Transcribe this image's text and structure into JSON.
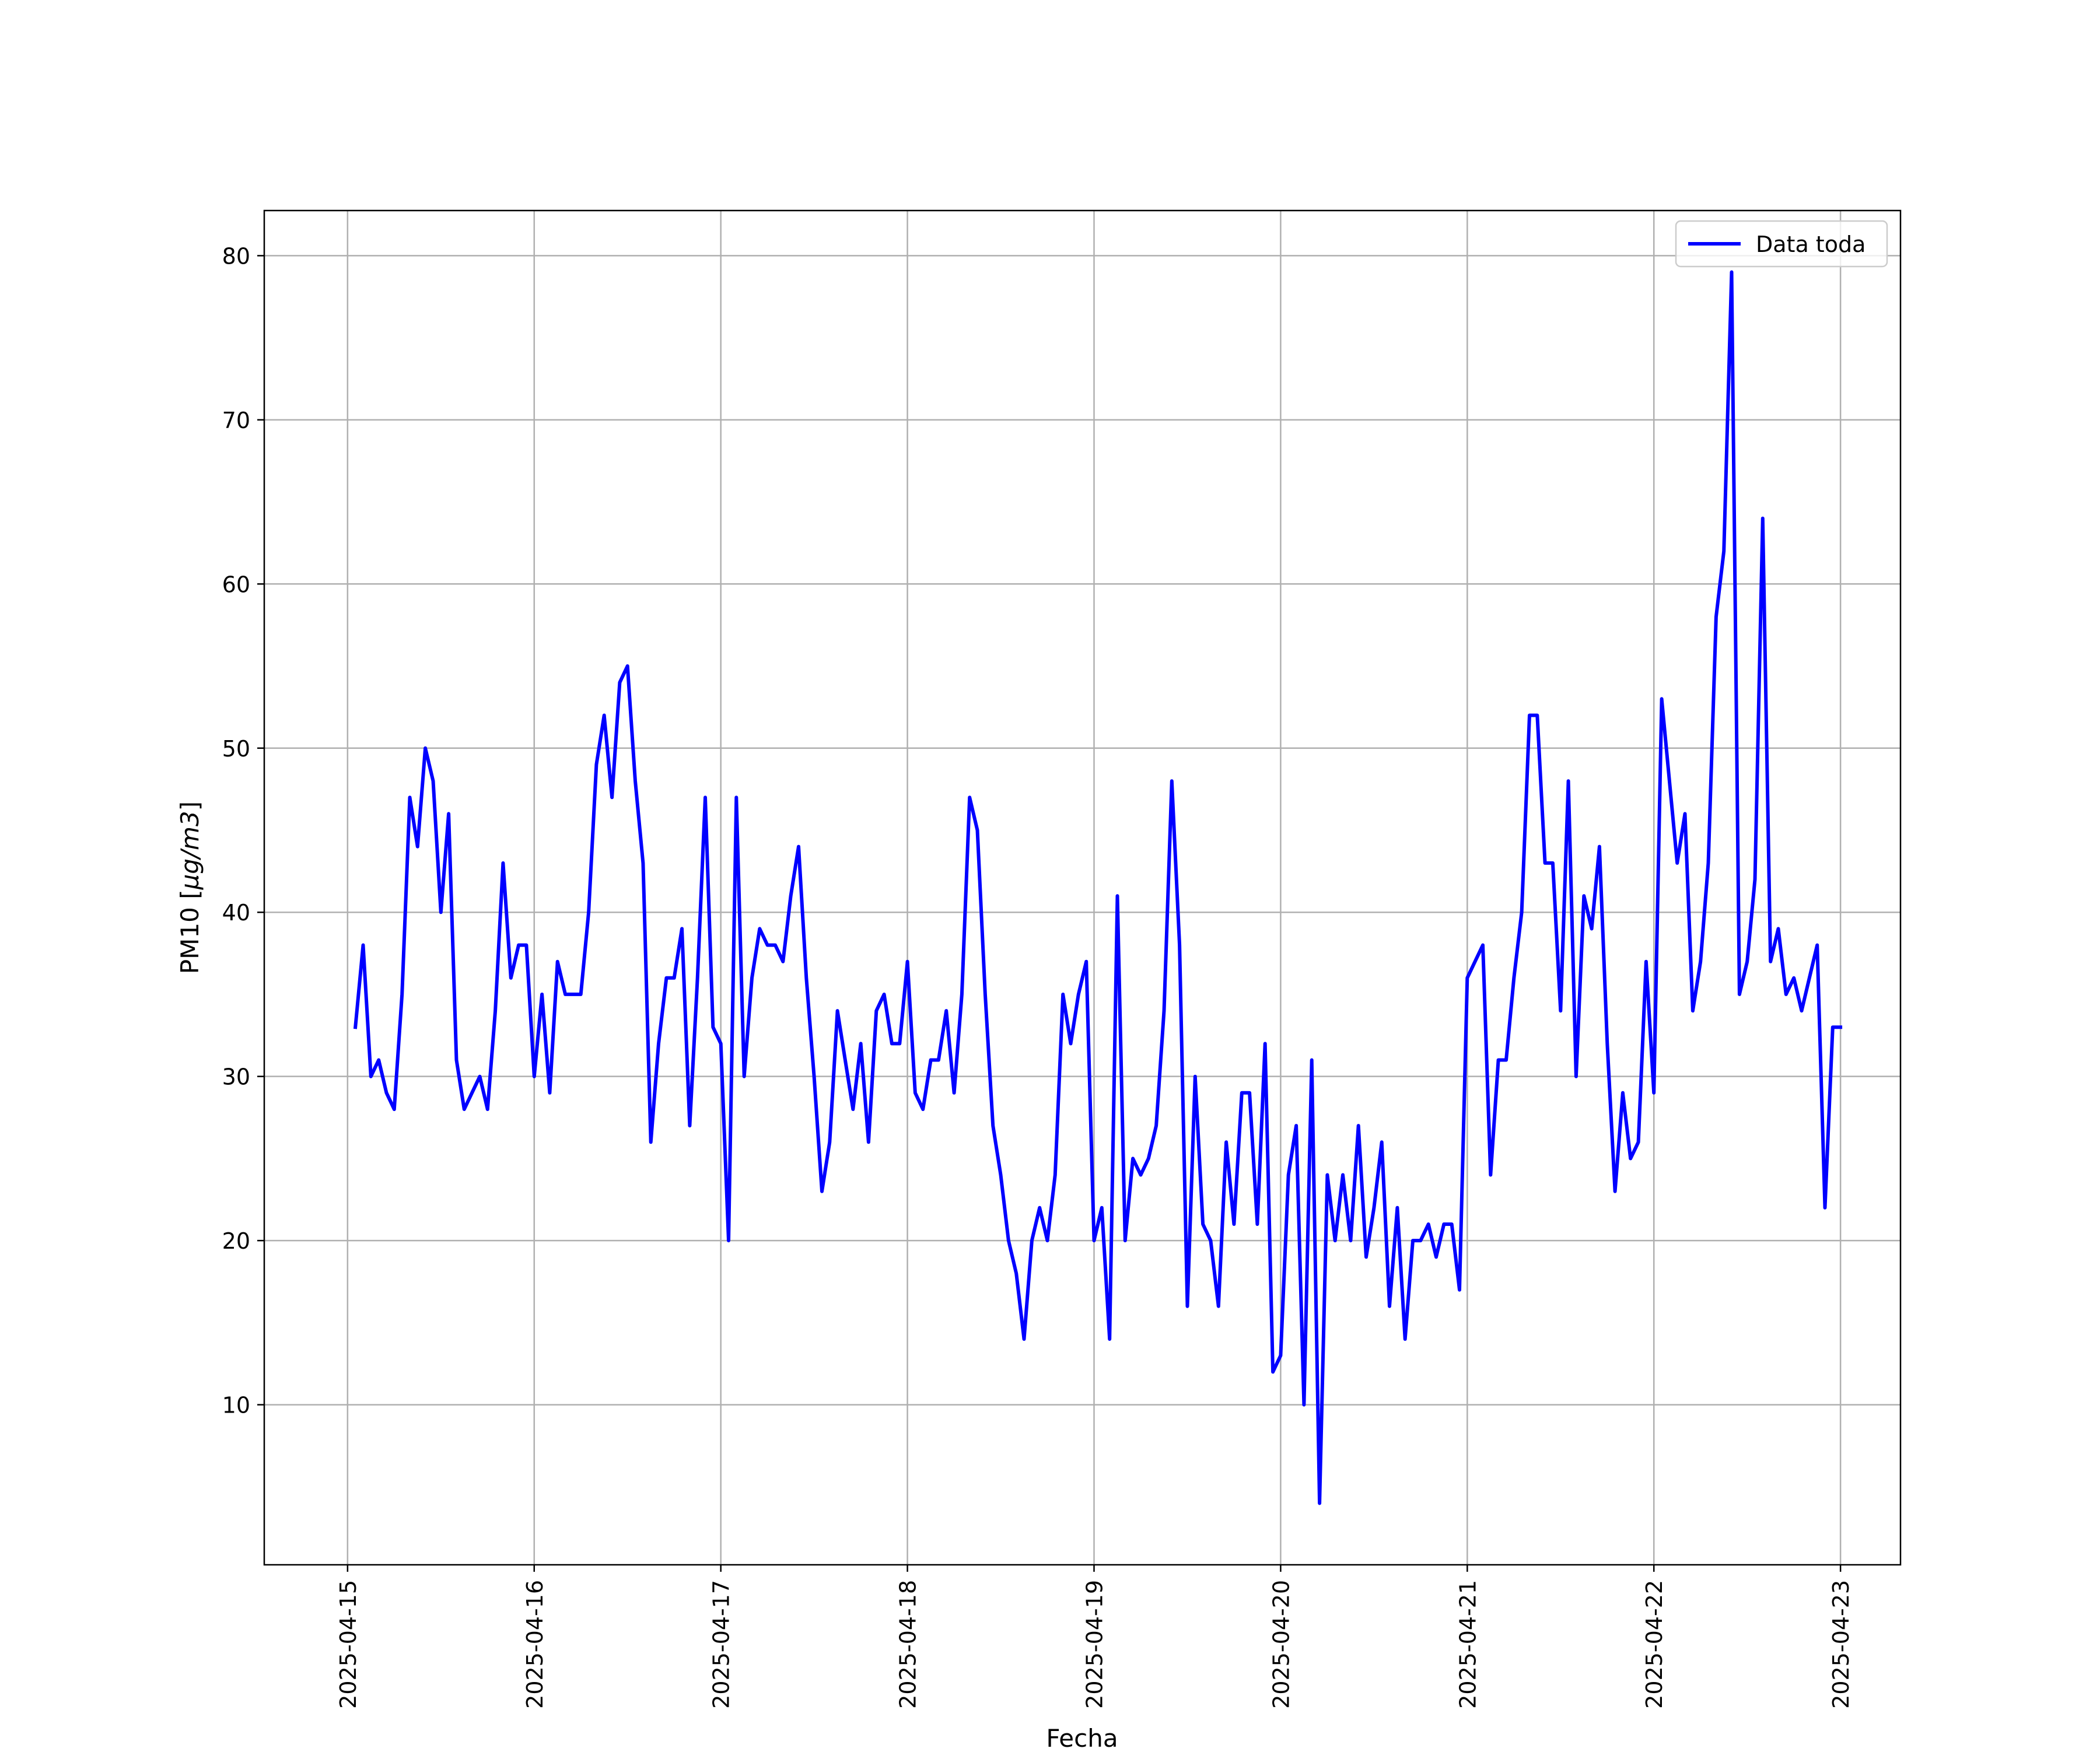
{
  "chart_data": {
    "type": "line",
    "title": "",
    "xlabel": "Fecha",
    "ylabel_text": "PM10 [",
    "ylabel_math": "μg/m3",
    "ylabel_close": "]",
    "x_tick_labels": [
      "2025-04-15",
      "2025-04-16",
      "2025-04-17",
      "2025-04-18",
      "2025-04-19",
      "2025-04-20",
      "2025-04-21",
      "2025-04-22",
      "2025-04-23"
    ],
    "y_ticks": [
      10,
      20,
      30,
      40,
      50,
      60,
      70,
      80
    ],
    "ylim": [
      0.25,
      82.75
    ],
    "xlim": [
      "2025-04-14T13:17",
      "2025-04-23T07:43"
    ],
    "grid": true,
    "legend_position": "top-right",
    "line_color": "#0000ff",
    "series": [
      {
        "name": "Data toda",
        "x": [
          "2025-04-15T01:00",
          "2025-04-15T02:00",
          "2025-04-15T03:00",
          "2025-04-15T04:00",
          "2025-04-15T05:00",
          "2025-04-15T06:00",
          "2025-04-15T07:00",
          "2025-04-15T08:00",
          "2025-04-15T09:00",
          "2025-04-15T10:00",
          "2025-04-15T11:00",
          "2025-04-15T12:00",
          "2025-04-15T13:00",
          "2025-04-15T14:00",
          "2025-04-15T15:00",
          "2025-04-15T16:00",
          "2025-04-15T17:00",
          "2025-04-15T18:00",
          "2025-04-15T19:00",
          "2025-04-15T20:00",
          "2025-04-15T21:00",
          "2025-04-15T22:00",
          "2025-04-15T23:00",
          "2025-04-16T00:00",
          "2025-04-16T01:00",
          "2025-04-16T02:00",
          "2025-04-16T03:00",
          "2025-04-16T04:00",
          "2025-04-16T05:00",
          "2025-04-16T06:00",
          "2025-04-16T07:00",
          "2025-04-16T08:00",
          "2025-04-16T09:00",
          "2025-04-16T10:00",
          "2025-04-16T11:00",
          "2025-04-16T12:00",
          "2025-04-16T13:00",
          "2025-04-16T14:00",
          "2025-04-16T15:00",
          "2025-04-16T16:00",
          "2025-04-16T17:00",
          "2025-04-16T18:00",
          "2025-04-16T19:00",
          "2025-04-16T20:00",
          "2025-04-16T21:00",
          "2025-04-16T22:00",
          "2025-04-16T23:00",
          "2025-04-17T00:00",
          "2025-04-17T01:00",
          "2025-04-17T02:00",
          "2025-04-17T03:00",
          "2025-04-17T04:00",
          "2025-04-17T05:00",
          "2025-04-17T06:00",
          "2025-04-17T07:00",
          "2025-04-17T08:00",
          "2025-04-17T09:00",
          "2025-04-17T10:00",
          "2025-04-17T11:00",
          "2025-04-17T12:00",
          "2025-04-17T13:00",
          "2025-04-17T14:00",
          "2025-04-17T15:00",
          "2025-04-17T16:00",
          "2025-04-17T17:00",
          "2025-04-17T18:00",
          "2025-04-17T19:00",
          "2025-04-17T20:00",
          "2025-04-17T21:00",
          "2025-04-17T22:00",
          "2025-04-17T23:00",
          "2025-04-18T00:00",
          "2025-04-18T01:00",
          "2025-04-18T02:00",
          "2025-04-18T03:00",
          "2025-04-18T04:00",
          "2025-04-18T05:00",
          "2025-04-18T06:00",
          "2025-04-18T07:00",
          "2025-04-18T08:00",
          "2025-04-18T09:00",
          "2025-04-18T10:00",
          "2025-04-18T11:00",
          "2025-04-18T12:00",
          "2025-04-18T13:00",
          "2025-04-18T14:00",
          "2025-04-18T15:00",
          "2025-04-18T16:00",
          "2025-04-18T17:00",
          "2025-04-18T18:00",
          "2025-04-18T19:00",
          "2025-04-18T20:00",
          "2025-04-18T21:00",
          "2025-04-18T22:00",
          "2025-04-18T23:00",
          "2025-04-19T00:00",
          "2025-04-19T01:00",
          "2025-04-19T02:00",
          "2025-04-19T03:00",
          "2025-04-19T04:00",
          "2025-04-19T05:00",
          "2025-04-19T06:00",
          "2025-04-19T07:00",
          "2025-04-19T08:00",
          "2025-04-19T09:00",
          "2025-04-19T10:00",
          "2025-04-19T11:00",
          "2025-04-19T12:00",
          "2025-04-19T13:00",
          "2025-04-19T14:00",
          "2025-04-19T15:00",
          "2025-04-19T16:00",
          "2025-04-19T17:00",
          "2025-04-19T18:00",
          "2025-04-19T19:00",
          "2025-04-19T20:00",
          "2025-04-19T21:00",
          "2025-04-19T22:00",
          "2025-04-19T23:00",
          "2025-04-20T00:00",
          "2025-04-20T01:00",
          "2025-04-20T02:00",
          "2025-04-20T03:00",
          "2025-04-20T04:00",
          "2025-04-20T05:00",
          "2025-04-20T06:00",
          "2025-04-20T07:00",
          "2025-04-20T08:00",
          "2025-04-20T09:00",
          "2025-04-20T10:00",
          "2025-04-20T11:00",
          "2025-04-20T12:00",
          "2025-04-20T13:00",
          "2025-04-20T14:00",
          "2025-04-20T15:00",
          "2025-04-20T16:00",
          "2025-04-20T17:00",
          "2025-04-20T18:00",
          "2025-04-20T19:00",
          "2025-04-20T20:00",
          "2025-04-20T21:00",
          "2025-04-20T22:00",
          "2025-04-20T23:00",
          "2025-04-21T00:00",
          "2025-04-21T01:00",
          "2025-04-21T02:00",
          "2025-04-21T03:00",
          "2025-04-21T04:00",
          "2025-04-21T05:00",
          "2025-04-21T06:00",
          "2025-04-21T07:00",
          "2025-04-21T08:00",
          "2025-04-21T09:00",
          "2025-04-21T10:00",
          "2025-04-21T11:00",
          "2025-04-21T12:00",
          "2025-04-21T13:00",
          "2025-04-21T14:00",
          "2025-04-21T15:00",
          "2025-04-21T16:00",
          "2025-04-21T17:00",
          "2025-04-21T18:00",
          "2025-04-21T19:00",
          "2025-04-21T20:00",
          "2025-04-21T21:00",
          "2025-04-21T22:00",
          "2025-04-21T23:00",
          "2025-04-22T00:00",
          "2025-04-22T01:00",
          "2025-04-22T02:00",
          "2025-04-22T03:00",
          "2025-04-22T04:00",
          "2025-04-22T05:00",
          "2025-04-22T06:00",
          "2025-04-22T07:00",
          "2025-04-22T08:00",
          "2025-04-22T09:00",
          "2025-04-22T10:00",
          "2025-04-22T11:00",
          "2025-04-22T12:00",
          "2025-04-22T13:00",
          "2025-04-22T14:00",
          "2025-04-22T15:00",
          "2025-04-22T16:00",
          "2025-04-22T17:00",
          "2025-04-22T18:00",
          "2025-04-22T19:00",
          "2025-04-22T20:00",
          "2025-04-22T21:00",
          "2025-04-22T22:00",
          "2025-04-22T23:00",
          "2025-04-23T00:00"
        ],
        "values": [
          33,
          38,
          30,
          31,
          29,
          28,
          35,
          47,
          44,
          50,
          48,
          40,
          46,
          31,
          28,
          29,
          30,
          28,
          34,
          43,
          36,
          38,
          38,
          30,
          35,
          29,
          37,
          35,
          35,
          35,
          40,
          49,
          52,
          47,
          54,
          55,
          48,
          43,
          26,
          32,
          36,
          36,
          39,
          27,
          36,
          47,
          33,
          32,
          20,
          47,
          30,
          36,
          39,
          38,
          38,
          37,
          41,
          44,
          36,
          30,
          23,
          26,
          34,
          31,
          28,
          32,
          26,
          34,
          35,
          32,
          32,
          37,
          29,
          28,
          31,
          31,
          34,
          29,
          35,
          47,
          45,
          35,
          27,
          24,
          20,
          18,
          14,
          20,
          22,
          20,
          24,
          35,
          32,
          35,
          37,
          20,
          22,
          14,
          41,
          20,
          25,
          24,
          25,
          27,
          34,
          48,
          38,
          16,
          30,
          21,
          20,
          16,
          26,
          21,
          29,
          29,
          21,
          32,
          12,
          13,
          24,
          27,
          10,
          31,
          4,
          24,
          20,
          24,
          20,
          27,
          19,
          22,
          26,
          16,
          22,
          14,
          20,
          20,
          21,
          19,
          21,
          21,
          17,
          36,
          37,
          38,
          24,
          31,
          31,
          36,
          40,
          52,
          52,
          43,
          43,
          34,
          48,
          30,
          41,
          39,
          44,
          32,
          23,
          29,
          25,
          26,
          37,
          29,
          53,
          48,
          43,
          46,
          34,
          37,
          43,
          58,
          62,
          79,
          35,
          37,
          42,
          64,
          37,
          39,
          35,
          36,
          34,
          36,
          38,
          22,
          33,
          33
        ]
      }
    ]
  }
}
